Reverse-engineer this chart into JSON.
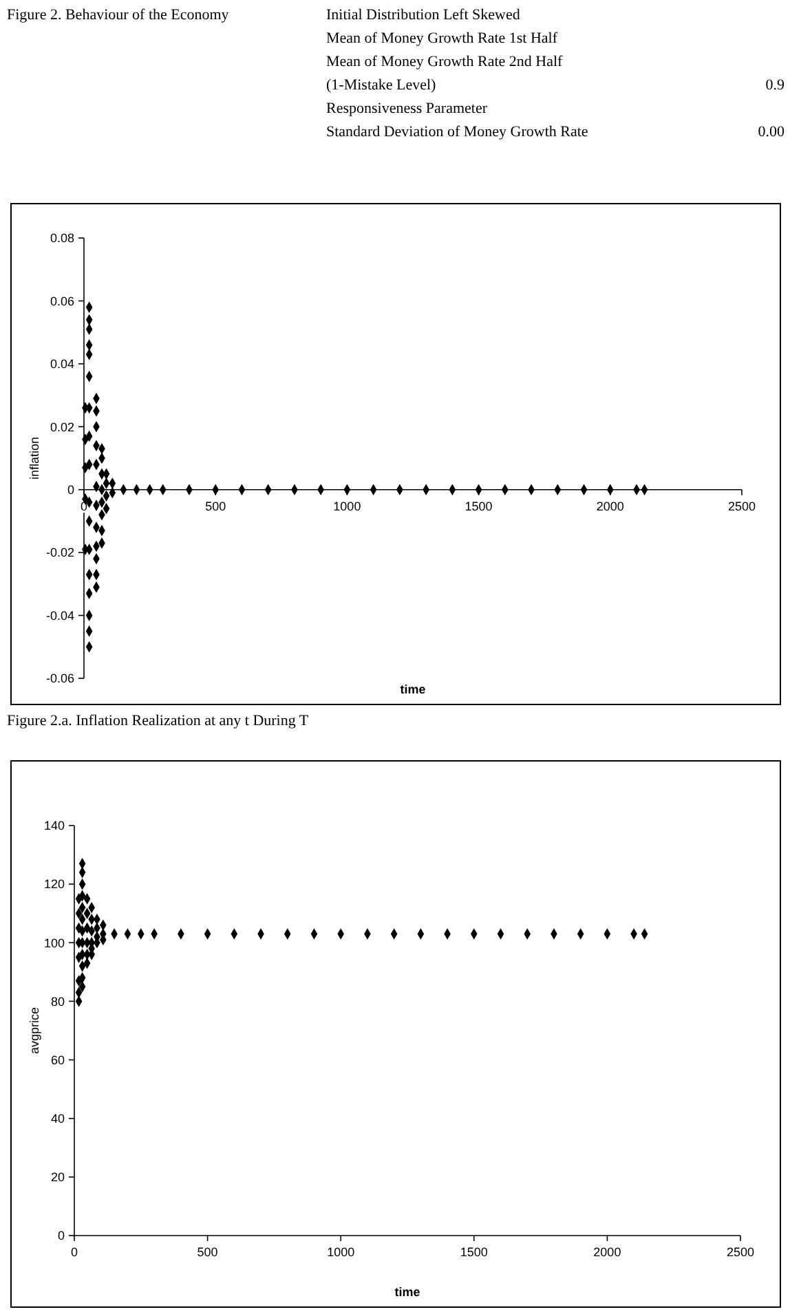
{
  "chart_data": [
    {
      "type": "scatter",
      "title": "Figure 2. Behaviour of the Economy",
      "xlabel": "time",
      "ylabel": "inflation",
      "annotations": [
        "Initial Distribution Left Skewed",
        "Mean of Money Growth Rate 1st Half",
        "Mean of Money Growth Rate 2nd Half",
        "(1-Mistake Level)",
        "Responsiveness Parameter",
        "Standard Deviation of Money Growth Rate",
        "0.9",
        "0.00",
        "Figure 2.a. Inflation Realization at any t During T"
      ],
      "xlim": [
        0,
        2500
      ],
      "xticks": [
        0,
        500,
        1000,
        1500,
        2000,
        2500
      ],
      "ylim": [
        -0.06,
        0.08
      ],
      "yticks": [
        -0.06,
        -0.04,
        -0.02,
        0,
        0.02,
        0.04,
        0.06,
        0.08
      ],
      "grid": false,
      "marker": "diamond",
      "series": [
        {
          "color": "#000000",
          "x": [
            5,
            5,
            5,
            5,
            5,
            20,
            20,
            20,
            20,
            20,
            20,
            20,
            20,
            20,
            20,
            20,
            20,
            20,
            20,
            20,
            20,
            20,
            47,
            47,
            47,
            47,
            47,
            47,
            47,
            47,
            47,
            47,
            47,
            47,
            68,
            68,
            68,
            68,
            68,
            68,
            68,
            68,
            85,
            85,
            85,
            85,
            108,
            108,
            150,
            200,
            250,
            300,
            400,
            500,
            600,
            700,
            800,
            900,
            1000,
            1100,
            1200,
            1300,
            1400,
            1500,
            1600,
            1700,
            1800,
            1900,
            2000,
            2100,
            2130
          ],
          "values": [
            0.026,
            0.016,
            0.007,
            -0.003,
            -0.019,
            0.058,
            0.054,
            0.051,
            0.046,
            0.043,
            0.036,
            0.026,
            0.017,
            0.008,
            -0.004,
            -0.01,
            -0.019,
            -0.027,
            -0.033,
            -0.04,
            -0.045,
            -0.05,
            0.029,
            0.025,
            0.02,
            0.014,
            0.008,
            0.001,
            -0.005,
            -0.012,
            -0.018,
            -0.022,
            -0.027,
            -0.031,
            0.013,
            0.01,
            0.005,
            0,
            -0.004,
            -0.008,
            -0.013,
            -0.017,
            0.005,
            0.002,
            -0.002,
            -0.006,
            0.002,
            -0.001,
            0,
            0,
            0,
            0,
            0,
            0,
            0,
            0,
            0,
            0,
            0,
            0,
            0,
            0,
            0,
            0,
            0,
            0,
            0,
            0,
            0,
            0,
            0
          ]
        }
      ]
    },
    {
      "type": "scatter",
      "xlabel": "time",
      "ylabel": "avgprice",
      "xlim": [
        0,
        2500
      ],
      "xticks": [
        0,
        500,
        1000,
        1500,
        2000,
        2500
      ],
      "ylim": [
        0,
        140
      ],
      "yticks": [
        0,
        20,
        40,
        60,
        80,
        100,
        120,
        140
      ],
      "grid": false,
      "marker": "diamond",
      "series": [
        {
          "color": "#000000",
          "x": [
            17,
            17,
            17,
            17,
            17,
            17,
            17,
            17,
            30,
            30,
            30,
            30,
            30,
            30,
            30,
            30,
            30,
            30,
            30,
            30,
            48,
            48,
            48,
            48,
            48,
            48,
            65,
            65,
            65,
            65,
            65,
            65,
            85,
            85,
            85,
            85,
            108,
            108,
            108,
            150,
            200,
            250,
            300,
            400,
            500,
            600,
            700,
            800,
            900,
            1000,
            1100,
            1200,
            1300,
            1400,
            1500,
            1600,
            1700,
            1800,
            1900,
            2000,
            2100,
            2140
          ],
          "values": [
            80,
            83,
            87,
            95,
            100,
            105,
            110,
            115,
            127,
            124,
            120,
            116,
            112,
            108,
            104,
            100,
            96,
            92,
            88,
            85,
            115,
            110,
            105,
            100,
            96,
            93,
            112,
            108,
            104,
            100,
            98,
            96,
            108,
            105,
            102,
            100,
            106,
            103,
            101,
            103,
            103,
            103,
            103,
            103,
            103,
            103,
            103,
            103,
            103,
            103,
            103,
            103,
            103,
            103,
            103,
            103,
            103,
            103,
            103,
            103,
            103,
            103
          ]
        }
      ]
    }
  ]
}
